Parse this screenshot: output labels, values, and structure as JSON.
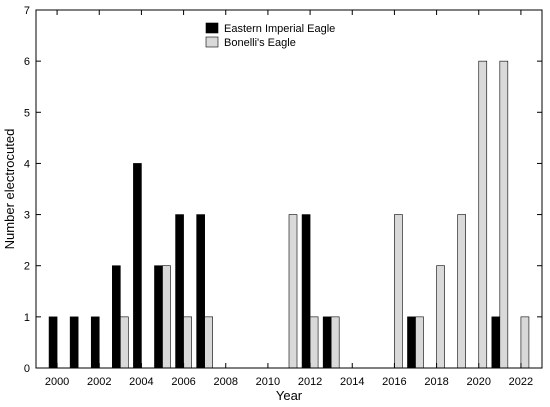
{
  "chart_data": {
    "type": "bar",
    "xlabel": "Year",
    "ylabel": "Number electrocuted",
    "ylim": [
      0,
      7
    ],
    "xlim": [
      1999,
      2023
    ],
    "x_ticks": [
      2000,
      2002,
      2004,
      2006,
      2008,
      2010,
      2012,
      2014,
      2016,
      2018,
      2020,
      2022
    ],
    "x_tick_labels": [
      "2000",
      "2002",
      "2004",
      "2006",
      "2008",
      "2010",
      "2012",
      "2014",
      "2016",
      "2018",
      "2020",
      "2022"
    ],
    "y_ticks": [
      0,
      1,
      2,
      3,
      4,
      5,
      6,
      7
    ],
    "y_tick_labels": [
      "0",
      "1",
      "2",
      "3",
      "4",
      "5",
      "6",
      "7"
    ],
    "categories": [
      2000,
      2001,
      2002,
      2003,
      2004,
      2005,
      2006,
      2007,
      2008,
      2009,
      2010,
      2011,
      2012,
      2013,
      2014,
      2015,
      2016,
      2017,
      2018,
      2019,
      2020,
      2021,
      2022
    ],
    "series": [
      {
        "name": "Eastern Imperial Eagle",
        "color": "#000000",
        "values": [
          1,
          1,
          1,
          2,
          4,
          2,
          3,
          3,
          0,
          0,
          0,
          0,
          3,
          1,
          0,
          0,
          0,
          1,
          0,
          0,
          0,
          1,
          0
        ]
      },
      {
        "name": "Bonelli's Eagle",
        "color": "#d9d9d9",
        "values": [
          0,
          0,
          0,
          1,
          0,
          2,
          1,
          1,
          0,
          0,
          0,
          3,
          1,
          1,
          0,
          0,
          3,
          1,
          2,
          3,
          6,
          6,
          1
        ]
      }
    ],
    "legend_position": "top-center",
    "grid": false
  }
}
